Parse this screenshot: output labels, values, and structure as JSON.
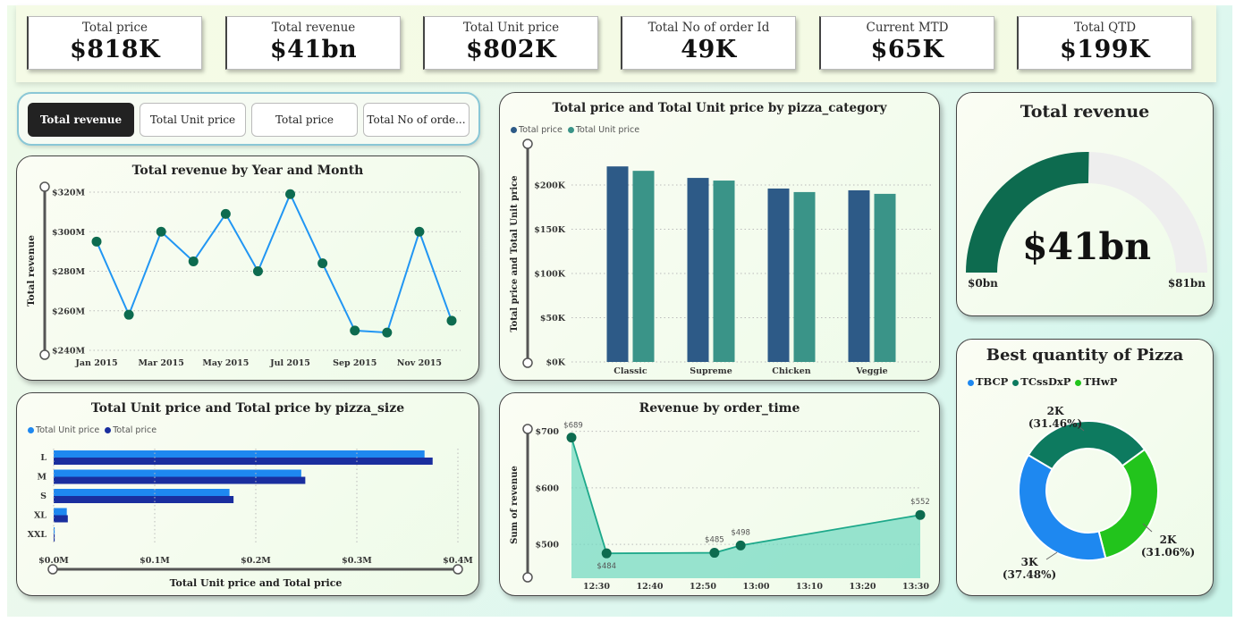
{
  "kpis": [
    {
      "label": "Total price",
      "value": "$818K"
    },
    {
      "label": "Total revenue",
      "value": "$41bn"
    },
    {
      "label": "Total Unit price",
      "value": "$802K"
    },
    {
      "label": "Total No of order Id",
      "value": "49K"
    },
    {
      "label": "Current MTD",
      "value": "$65K"
    },
    {
      "label": "Total QTD",
      "value": "$199K"
    }
  ],
  "tabs": [
    {
      "label": "Total revenue",
      "active": true
    },
    {
      "label": "Total Unit price",
      "active": false
    },
    {
      "label": "Total price",
      "active": false
    },
    {
      "label": "Total No of orde...",
      "active": false
    }
  ],
  "colors": {
    "line_blue": "#2196f3",
    "marker_green": "#0d6b4f",
    "bar_dark": "#2d5a87",
    "bar_teal": "#3a9488",
    "hbar_light": "#1e88f0",
    "hbar_dark": "#1a2e9e",
    "area_teal": "#6fd9c0",
    "gauge_fill": "#0d6b4f",
    "gauge_rest": "#eeeeee",
    "donut_blue": "#1e88f0",
    "donut_green_dark": "#0d7a5f",
    "donut_green_light": "#22c41c"
  },
  "chart_data": [
    {
      "id": "revenue_by_month",
      "type": "line",
      "title": "Total revenue by Year and Month",
      "ylabel": "Total revenue",
      "x_tick_labels": [
        "Jan 2015",
        "Mar 2015",
        "May 2015",
        "Jul 2015",
        "Sep 2015",
        "Nov 2015"
      ],
      "y_tick_labels": [
        "$240M",
        "$260M",
        "$280M",
        "$300M",
        "$320M"
      ],
      "ylim": [
        240,
        320
      ],
      "x": [
        "Jan 2015",
        "Feb 2015",
        "Mar 2015",
        "Apr 2015",
        "May 2015",
        "Jun 2015",
        "Jul 2015",
        "Aug 2015",
        "Sep 2015",
        "Oct 2015",
        "Nov 2015",
        "Dec 2015"
      ],
      "values": [
        295,
        258,
        300,
        285,
        309,
        280,
        319,
        284,
        250,
        249,
        300,
        255
      ]
    },
    {
      "id": "price_by_category",
      "type": "bar",
      "title": "Total price and Total Unit price by pizza_category",
      "ylabel": "Total price and Total Unit price",
      "categories": [
        "Classic",
        "Supreme",
        "Chicken",
        "Veggie"
      ],
      "y_tick_labels": [
        "$0K",
        "$50K",
        "$100K",
        "$150K",
        "$200K"
      ],
      "ylim": [
        0,
        240
      ],
      "series": [
        {
          "name": "Total price",
          "values": [
            221,
            208,
            196,
            194
          ]
        },
        {
          "name": "Total Unit price",
          "values": [
            216,
            205,
            192,
            190
          ]
        }
      ]
    },
    {
      "id": "revenue_gauge",
      "type": "gauge",
      "title": "Total revenue",
      "value_label": "$41bn",
      "min_label": "$0bn",
      "max_label": "$81bn",
      "value": 41,
      "min": 0,
      "max": 81
    },
    {
      "id": "price_by_size",
      "type": "bar",
      "orientation": "horizontal",
      "title": "Total Unit price and Total price by pizza_size",
      "xlabel": "Total Unit price and Total price",
      "categories": [
        "L",
        "M",
        "S",
        "XL",
        "XXL"
      ],
      "x_tick_labels": [
        "$0.0M",
        "$0.1M",
        "$0.2M",
        "$0.3M",
        "$0.4M"
      ],
      "xlim": [
        0,
        0.4
      ],
      "series": [
        {
          "name": "Total Unit price",
          "values": [
            0.367,
            0.245,
            0.174,
            0.013,
            0.001
          ]
        },
        {
          "name": "Total price",
          "values": [
            0.375,
            0.249,
            0.178,
            0.014,
            0.001
          ]
        }
      ]
    },
    {
      "id": "revenue_by_order_time",
      "type": "area",
      "title": "Revenue by order_time",
      "ylabel": "Sum of revenue",
      "x_tick_labels": [
        "12:30",
        "12:40",
        "12:50",
        "13:00",
        "13:10",
        "13:20",
        "13:30"
      ],
      "y_tick_labels": [
        "$500",
        "$600",
        "$700"
      ],
      "ylim": [
        440,
        720
      ],
      "x_minutes": [
        0,
        6.7,
        27.3,
        32.3,
        66.6
      ],
      "values": [
        689,
        484,
        485,
        498,
        552
      ],
      "data_labels": [
        "$689",
        "$484",
        "$485",
        "$498",
        "$552"
      ]
    },
    {
      "id": "best_quantity",
      "type": "pie",
      "title": "Best quantity of Pizza",
      "labels": [
        "TBCP",
        "TCssDxP",
        "THwP"
      ],
      "values": [
        37.48,
        31.46,
        31.06
      ],
      "slice_labels": [
        {
          "value": "3K",
          "pct": "(37.48%)"
        },
        {
          "value": "2K",
          "pct": "(31.46%)"
        },
        {
          "value": "2K",
          "pct": "(31.06%)"
        }
      ]
    }
  ]
}
